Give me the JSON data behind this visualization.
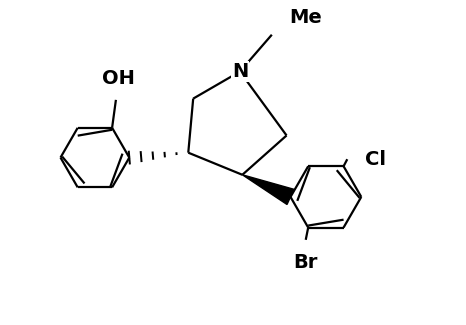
{
  "bg_color": "#ffffff",
  "line_color": "#000000",
  "line_width": 1.6,
  "figsize": [
    4.66,
    3.25
  ],
  "dpi": 100,
  "font_size": 14,
  "xlim": [
    0,
    9.32
  ],
  "ylim": [
    0,
    6.5
  ]
}
